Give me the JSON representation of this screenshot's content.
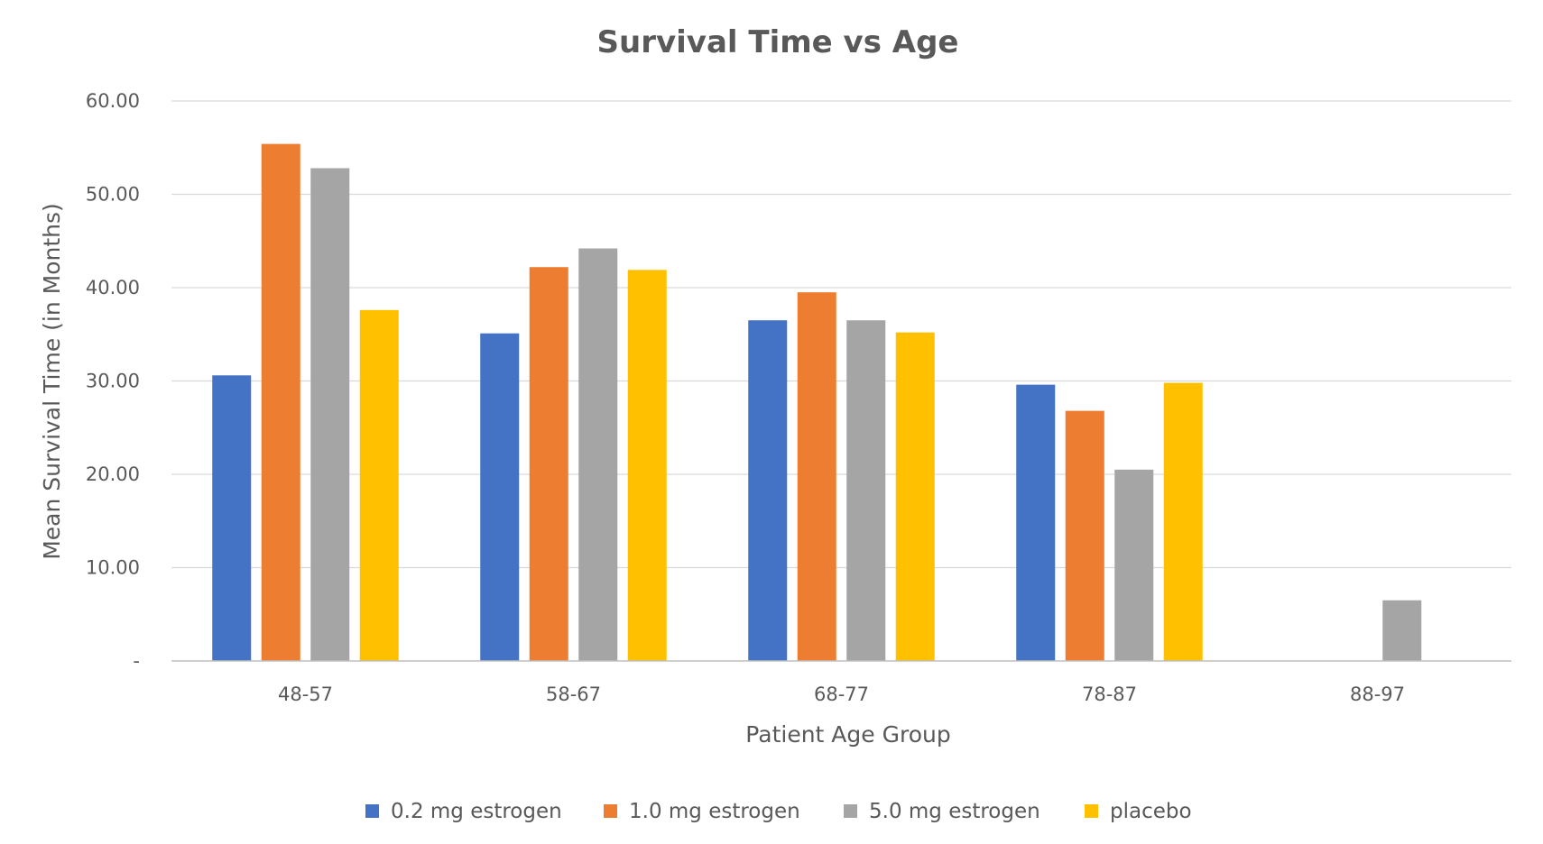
{
  "chart_data": {
    "type": "bar",
    "title": "Survival Time vs Age",
    "xlabel": "Patient Age Group",
    "ylabel": "Mean Survival Time (in Months)",
    "categories": [
      "48-57",
      "58-67",
      "68-77",
      "78-87",
      "88-97"
    ],
    "y_ticks": [
      "-",
      "10.00",
      "20.00",
      "30.00",
      "40.00",
      "50.00",
      "60.00"
    ],
    "ylim": [
      0,
      60
    ],
    "grid": true,
    "legend_position": "bottom",
    "series": [
      {
        "name": "0.2 mg estrogen",
        "color": "#4472c4",
        "values": [
          30.6,
          35.1,
          36.5,
          29.6,
          null
        ]
      },
      {
        "name": "1.0 mg estrogen",
        "color": "#ed7d31",
        "values": [
          55.4,
          42.2,
          39.5,
          26.8,
          null
        ]
      },
      {
        "name": "5.0 mg estrogen",
        "color": "#a5a5a5",
        "values": [
          52.8,
          44.2,
          36.5,
          20.5,
          6.5
        ]
      },
      {
        "name": "placebo",
        "color": "#ffc000",
        "values": [
          37.6,
          41.9,
          35.2,
          29.8,
          null
        ]
      }
    ]
  }
}
